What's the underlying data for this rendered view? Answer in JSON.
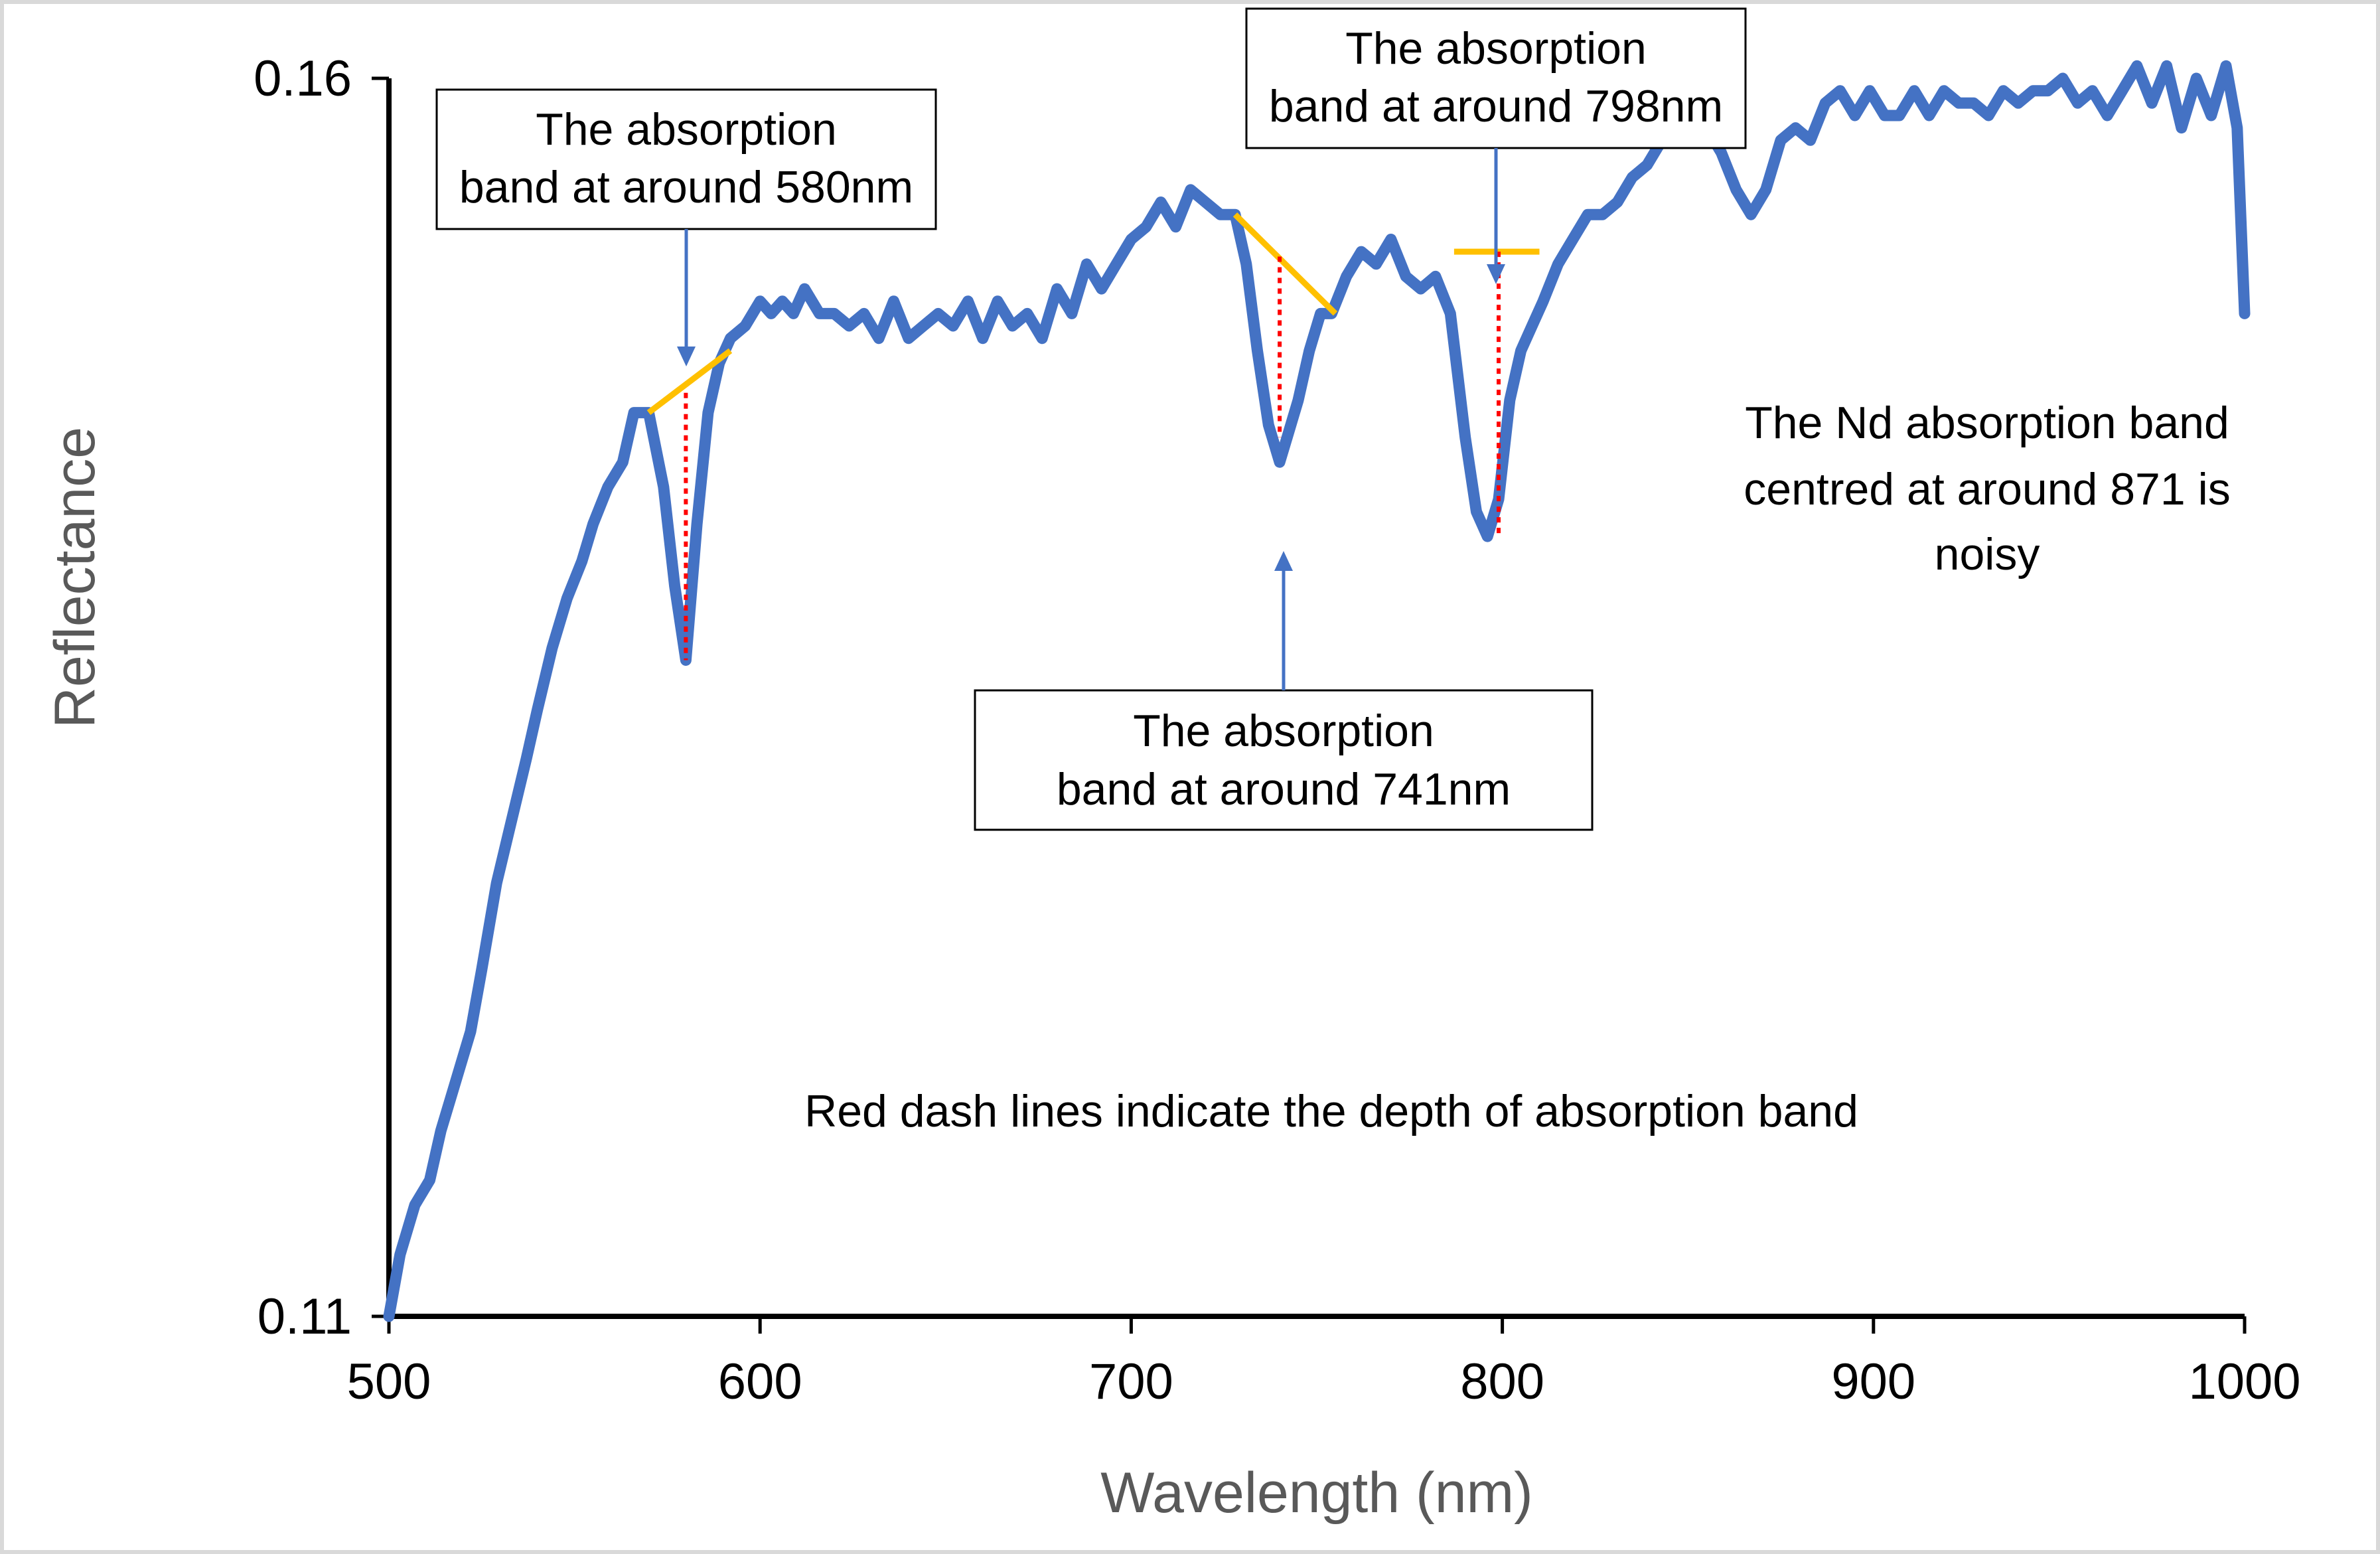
{
  "chart_data": {
    "type": "line",
    "title": "",
    "xlabel": "Wavelength (nm)",
    "ylabel": "Reflectance",
    "xlim": [
      500,
      1000
    ],
    "ylim": [
      0.11,
      0.16
    ],
    "xticks": [
      "500",
      "600",
      "700",
      "800",
      "900",
      "1000"
    ],
    "yticks": [
      "0.11",
      "0.16"
    ],
    "grid": false,
    "legend": "none",
    "series_color": "#4472C4",
    "continuum_color": "#FFC000",
    "depth_line_color": "#FF0000",
    "series": [
      {
        "x": [
          500,
          503,
          507,
          511,
          514,
          518,
          522,
          525,
          529,
          533,
          537,
          540,
          544,
          548,
          552,
          555,
          559,
          563,
          566,
          570,
          574,
          577,
          580,
          583,
          586,
          589,
          592,
          596,
          600,
          603,
          606,
          609,
          612,
          616,
          620,
          624,
          628,
          632,
          636,
          640,
          644,
          648,
          652,
          656,
          660,
          664,
          668,
          672,
          676,
          680,
          684,
          688,
          692,
          696,
          700,
          704,
          708,
          712,
          716,
          720,
          724,
          728,
          731,
          734,
          737,
          740,
          742,
          745,
          748,
          751,
          754,
          758,
          762,
          766,
          770,
          774,
          778,
          782,
          786,
          790,
          793,
          796,
          799,
          802,
          805,
          808,
          811,
          815,
          819,
          823,
          827,
          831,
          835,
          839,
          843,
          847,
          851,
          855,
          859,
          863,
          867,
          871,
          875,
          879,
          883,
          887,
          891,
          895,
          899,
          903,
          907,
          911,
          915,
          919,
          923,
          927,
          931,
          935,
          939,
          943,
          947,
          951,
          955,
          959,
          963,
          967,
          971,
          975,
          979,
          983,
          987,
          991,
          995,
          998,
          1000
        ],
        "y": [
          0.11,
          0.1125,
          0.1145,
          0.1155,
          0.1175,
          0.1195,
          0.1215,
          0.124,
          0.1275,
          0.13,
          0.1325,
          0.1345,
          0.137,
          0.139,
          0.1405,
          0.142,
          0.1435,
          0.1445,
          0.1465,
          0.1465,
          0.1435,
          0.1395,
          0.1365,
          0.142,
          0.1465,
          0.1485,
          0.1495,
          0.15,
          0.151,
          0.1505,
          0.151,
          0.1505,
          0.1515,
          0.1505,
          0.1505,
          0.15,
          0.1505,
          0.1495,
          0.151,
          0.1495,
          0.15,
          0.1505,
          0.15,
          0.151,
          0.1495,
          0.151,
          0.15,
          0.1505,
          0.1495,
          0.1515,
          0.1505,
          0.1525,
          0.1515,
          0.1525,
          0.1535,
          0.154,
          0.155,
          0.154,
          0.1555,
          0.155,
          0.1545,
          0.1545,
          0.1525,
          0.149,
          0.146,
          0.1445,
          0.1455,
          0.147,
          0.149,
          0.1505,
          0.1505,
          0.152,
          0.153,
          0.1525,
          0.1535,
          0.152,
          0.1515,
          0.152,
          0.1505,
          0.1455,
          0.1425,
          0.1415,
          0.143,
          0.147,
          0.149,
          0.15,
          0.151,
          0.1525,
          0.1535,
          0.1545,
          0.1545,
          0.155,
          0.156,
          0.1565,
          0.1575,
          0.158,
          0.1585,
          0.158,
          0.157,
          0.1555,
          0.1545,
          0.1555,
          0.1575,
          0.158,
          0.1575,
          0.159,
          0.1595,
          0.1585,
          0.1595,
          0.1585,
          0.1585,
          0.1595,
          0.1585,
          0.1595,
          0.159,
          0.159,
          0.1585,
          0.1595,
          0.159,
          0.1595,
          0.1595,
          0.16,
          0.159,
          0.1595,
          0.1585,
          0.1595,
          0.1605,
          0.159,
          0.1605,
          0.158,
          0.16,
          0.1585,
          0.1605,
          0.158,
          0.1505
        ]
      }
    ],
    "continuum_segments": [
      {
        "x": [
          570,
          592
        ],
        "y": [
          0.1465,
          0.149
        ]
      },
      {
        "x": [
          728,
          755
        ],
        "y": [
          0.1545,
          0.1505
        ]
      },
      {
        "x": [
          787,
          810
        ],
        "y": [
          0.153,
          0.153
        ]
      }
    ],
    "depth_lines": [
      {
        "x": 580,
        "y": [
          0.1473,
          0.1365
        ]
      },
      {
        "x": 740,
        "y": [
          0.1528,
          0.1455
        ]
      },
      {
        "x": 799,
        "y": [
          0.153,
          0.1415
        ]
      }
    ],
    "annotations": {
      "band580": [
        "The absorption",
        "band at around 580nm"
      ],
      "band741": [
        "The absorption",
        "band at around 741nm"
      ],
      "band798": [
        "The absorption",
        "band at around 798nm"
      ],
      "nd_note": [
        "The Nd absorption band",
        "centred at around 871 is",
        "noisy"
      ],
      "depth_note": "Red dash lines indicate the depth of absorption band"
    }
  }
}
